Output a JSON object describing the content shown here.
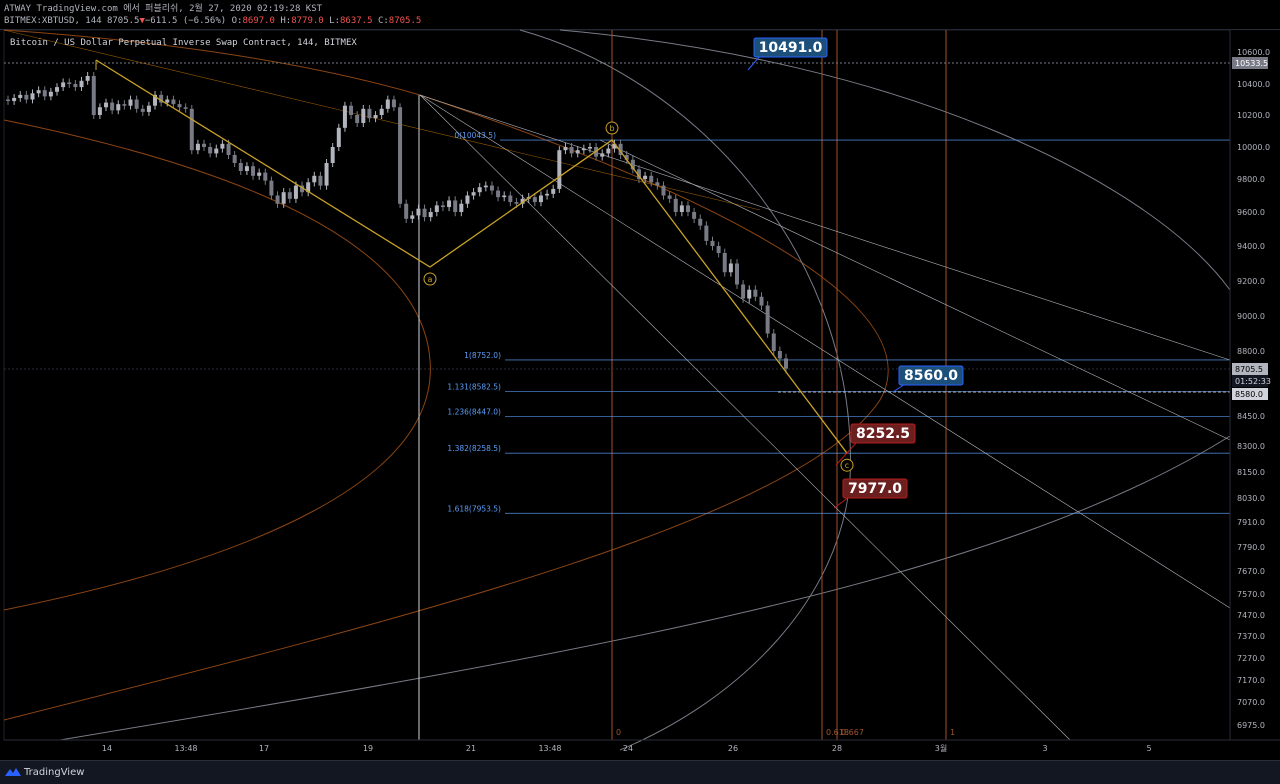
{
  "header": {
    "line1": "ATWAY TradingView.com 에서 퍼블리쉬, 2월 27, 2020 02:19:28 KST",
    "line2_prefix": "BITMEX:XBTUSD, 144 8705.5",
    "change_arrow": "▼",
    "change": "−611.5 (−6.56%)",
    "o_label": "O:",
    "o": "8697.0",
    "h_label": "H:",
    "h": "8779.0",
    "l_label": "L:",
    "l": "8637.5",
    "c_label": "C:",
    "c": "8705.5"
  },
  "symbol_title": "Bitcoin / US Dollar Perpetual Inverse Swap Contract, 144, BITMEX",
  "footer": {
    "logo_text": "TradingView"
  },
  "colors": {
    "up": "#b2b5be",
    "down": "#787b86",
    "wave": "#c9a227",
    "fib": "#5b9cf6",
    "arc": "#8b4513",
    "ellipse": "#787b86",
    "time": "#a0522d"
  },
  "price_axis": {
    "ticks": [
      10600,
      10400,
      10200,
      10000,
      9800,
      9600,
      9400,
      9200,
      9000,
      8800,
      8580,
      8450,
      8300,
      8150,
      8030,
      7910,
      7790,
      7670,
      7570,
      7470,
      7370,
      7270,
      7170,
      7070,
      6975
    ],
    "tick_labels": [
      "10600.0",
      "10400.0",
      "10200.0",
      "10000.0",
      "9800.0",
      "9600.0",
      "9400.0",
      "9200.0",
      "9000.0",
      "8800.0",
      "8580.0",
      "8450.0",
      "8300.0",
      "8150.0",
      "8030.0",
      "7910.0",
      "7790.0",
      "7670.0",
      "7570.0",
      "7470.0",
      "7370.0",
      "7270.0",
      "7170.0",
      "7070.0",
      "6975.0"
    ],
    "high_marker": "10533.5",
    "last_price": "8705.5",
    "countdown": "01:52:33"
  },
  "time_axis": {
    "labels": [
      "14",
      "13:48",
      "17",
      "19",
      "21",
      "13:48",
      "24",
      "26",
      "28",
      "3월",
      "3",
      "5"
    ]
  },
  "fib_levels": [
    {
      "label": "0(10043.5)",
      "price": 10043.5
    },
    {
      "label": "1(8752.0)",
      "price": 8752.0
    },
    {
      "label": "1.131(8582.5)",
      "price": 8582.5
    },
    {
      "label": "1.236(8447.0)",
      "price": 8447.0
    },
    {
      "label": "1.382(8258.5)",
      "price": 8258.5
    },
    {
      "label": "1.618(7953.5)",
      "price": 7953.5
    }
  ],
  "time_fib_labels": [
    "0",
    "0.618",
    "0.667",
    "1"
  ],
  "wave_labels": [
    "a",
    "b",
    "c"
  ],
  "price_badges": [
    {
      "text": "10491.0",
      "kind": "blue"
    },
    {
      "text": "8560.0",
      "kind": "blue"
    },
    {
      "text": "8252.5",
      "kind": "red"
    },
    {
      "text": "7977.0",
      "kind": "red"
    }
  ],
  "chart_data": {
    "type": "candlestick",
    "title": "Bitcoin / US Dollar Perpetual Inverse Swap Contract, 144, BITMEX",
    "interval": "144",
    "ylim": [
      6940,
      10700
    ],
    "last": 8705.5,
    "wave_points": [
      {
        "label": "",
        "price": 10560
      },
      {
        "label": "a",
        "price": 9280
      },
      {
        "label": "b",
        "price": 10043.5
      },
      {
        "label": "c",
        "price": 8258.5
      }
    ],
    "series_close": [
      10290,
      10310,
      10330,
      10300,
      10340,
      10360,
      10320,
      10350,
      10380,
      10410,
      10400,
      10380,
      10420,
      10450,
      10200,
      10250,
      10280,
      10230,
      10270,
      10260,
      10300,
      10240,
      10220,
      10260,
      10330,
      10280,
      10300,
      10270,
      10250,
      10240,
      9980,
      10020,
      10000,
      9960,
      9990,
      10020,
      9950,
      9900,
      9850,
      9880,
      9820,
      9840,
      9790,
      9700,
      9650,
      9720,
      9680,
      9760,
      9720,
      9780,
      9820,
      9760,
      9900,
      10000,
      10120,
      10260,
      10200,
      10150,
      10240,
      10180,
      10200,
      10240,
      10300,
      10250,
      9650,
      9560,
      9580,
      9620,
      9570,
      9600,
      9640,
      9630,
      9670,
      9600,
      9650,
      9700,
      9720,
      9750,
      9760,
      9730,
      9690,
      9700,
      9660,
      9650,
      9680,
      9690,
      9660,
      9700,
      9710,
      9740,
      9980,
      10000,
      9960,
      9980,
      9990,
      10000,
      9940,
      9960,
      9990,
      10020,
      9950,
      9920,
      9860,
      9800,
      9820,
      9780,
      9760,
      9700,
      9680,
      9600,
      9640,
      9600,
      9560,
      9520,
      9430,
      9400,
      9360,
      9250,
      9300,
      9180,
      9100,
      9150,
      9110,
      9060,
      8900,
      8800,
      8760,
      8705.5
    ]
  }
}
